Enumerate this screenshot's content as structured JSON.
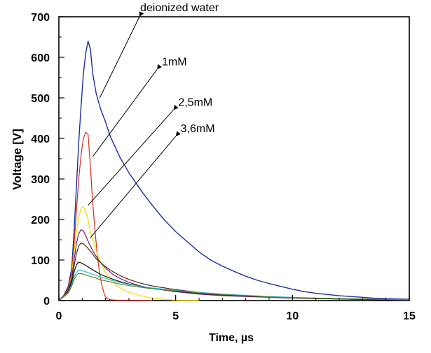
{
  "chart_data": {
    "type": "line",
    "xlabel": "Time, µs",
    "ylabel": "Voltage [V]",
    "xlim": [
      0,
      15
    ],
    "ylim": [
      0,
      700
    ],
    "x_ticks": [
      0,
      5,
      10,
      15
    ],
    "y_ticks": [
      0,
      100,
      200,
      300,
      400,
      500,
      600,
      700
    ],
    "grid": false,
    "legend": "annotations-with-arrows",
    "annotations": [
      {
        "text": "deionized water",
        "series": "deionized water",
        "arrow_from": [
          3.45,
          700
        ],
        "arrow_to": [
          1.75,
          500
        ]
      },
      {
        "text": "1mM",
        "series": "1mM",
        "arrow_from": [
          4.2,
          570
        ],
        "arrow_to": [
          1.45,
          355
        ]
      },
      {
        "text": "2,5mM",
        "series": "2,5mM",
        "arrow_from": [
          4.9,
          470
        ],
        "arrow_to": [
          1.25,
          235
        ]
      },
      {
        "text": "3,6mM",
        "series": "3,6mM",
        "arrow_from": [
          5.0,
          405
        ],
        "arrow_to": [
          1.35,
          155
        ]
      }
    ],
    "series": [
      {
        "name": "deionized water",
        "color": "#1f2ea0",
        "x": [
          0,
          0.2,
          0.4,
          0.55,
          0.65,
          0.75,
          0.85,
          0.95,
          1.05,
          1.15,
          1.25,
          1.35,
          1.45,
          1.6,
          1.8,
          2.0,
          2.2,
          2.4,
          2.6,
          2.8,
          3.0,
          3.3,
          3.6,
          4.0,
          4.5,
          5.0,
          5.5,
          6.0,
          6.5,
          7.0,
          7.5,
          8.0,
          8.5,
          9.0,
          9.5,
          10.0,
          10.5,
          11.0,
          11.5,
          12.0,
          12.5,
          13.0,
          13.5,
          14.0,
          14.5,
          15.0
        ],
        "y": [
          0,
          12,
          35,
          80,
          170,
          280,
          390,
          480,
          560,
          610,
          640,
          620,
          560,
          510,
          470,
          440,
          405,
          380,
          355,
          335,
          315,
          290,
          265,
          235,
          200,
          170,
          145,
          120,
          100,
          85,
          72,
          60,
          50,
          42,
          35,
          28,
          22,
          18,
          15,
          12,
          10,
          8,
          6,
          5,
          4,
          3
        ]
      },
      {
        "name": "1mM",
        "color": "#d22b1f",
        "x": [
          0,
          0.2,
          0.4,
          0.55,
          0.65,
          0.75,
          0.85,
          0.95,
          1.05,
          1.15,
          1.25,
          1.35,
          1.45,
          1.55,
          1.65,
          1.75,
          1.85,
          1.95,
          2.05,
          2.2,
          2.5,
          3.0,
          4.0
        ],
        "y": [
          0,
          12,
          30,
          70,
          140,
          220,
          300,
          360,
          400,
          415,
          410,
          330,
          240,
          170,
          110,
          65,
          35,
          15,
          5,
          2,
          1,
          1,
          0
        ]
      },
      {
        "name": "2,5mM",
        "color": "#f0e000",
        "x": [
          0,
          0.2,
          0.4,
          0.55,
          0.65,
          0.75,
          0.85,
          0.95,
          1.05,
          1.15,
          1.25,
          1.35,
          1.5,
          1.7,
          1.9,
          2.1,
          2.3,
          2.6,
          3.0,
          3.5,
          4.0,
          4.5,
          5.0,
          6.0
        ],
        "y": [
          0,
          10,
          25,
          60,
          120,
          170,
          205,
          228,
          232,
          220,
          200,
          170,
          140,
          105,
          80,
          60,
          45,
          32,
          20,
          12,
          6,
          3,
          1,
          0
        ]
      },
      {
        "name": "3,6mM",
        "color": "#7a1f6a",
        "x": [
          0,
          0.2,
          0.4,
          0.55,
          0.65,
          0.75,
          0.85,
          0.95,
          1.05,
          1.15,
          1.3,
          1.5,
          1.7,
          2.0,
          2.3,
          2.6,
          3.0,
          3.5,
          4.0,
          5.0,
          6.0,
          7.0,
          8.0,
          9.0,
          10.0,
          11.0,
          12.0,
          13.0,
          14.0,
          15.0
        ],
        "y": [
          0,
          10,
          25,
          55,
          100,
          140,
          165,
          175,
          172,
          160,
          140,
          118,
          100,
          80,
          65,
          55,
          45,
          36,
          30,
          22,
          16,
          12,
          10,
          8,
          6,
          5,
          4,
          3,
          2,
          1
        ]
      },
      {
        "name": "",
        "color": "#4a2a1a",
        "x": [
          0,
          0.2,
          0.4,
          0.55,
          0.65,
          0.75,
          0.85,
          0.95,
          1.05,
          1.2,
          1.4,
          1.6,
          1.9,
          2.2,
          2.6,
          3.0,
          3.5,
          4.0,
          5.0,
          6.0,
          7.0,
          8.0,
          9.0,
          10.0,
          11.0,
          12.0,
          13.0,
          14.0,
          15.0
        ],
        "y": [
          0,
          10,
          25,
          50,
          85,
          115,
          135,
          142,
          140,
          132,
          118,
          103,
          88,
          75,
          62,
          52,
          43,
          36,
          27,
          20,
          15,
          12,
          9,
          7,
          5,
          4,
          3,
          2,
          1
        ]
      },
      {
        "name": "",
        "color": "#111111",
        "x": [
          0,
          0.2,
          0.4,
          0.55,
          0.65,
          0.75,
          0.85,
          1.0,
          1.2,
          1.5,
          1.8,
          2.2,
          2.6,
          3.0,
          3.5,
          4.0,
          5.0,
          6.0,
          7.0,
          8.0,
          9.0,
          10.0,
          11.0,
          12.0,
          13.0,
          14.0,
          15.0
        ],
        "y": [
          0,
          10,
          22,
          45,
          70,
          88,
          95,
          92,
          85,
          74,
          64,
          55,
          47,
          41,
          35,
          30,
          23,
          18,
          14,
          11,
          9,
          7,
          5,
          4,
          3,
          2,
          1
        ]
      },
      {
        "name": "",
        "color": "#23c2c8",
        "x": [
          0,
          0.2,
          0.4,
          0.55,
          0.65,
          0.75,
          0.85,
          1.0,
          1.2,
          1.5,
          1.8,
          2.2,
          2.6,
          3.0,
          3.5,
          4.0,
          5.0,
          6.0,
          7.0,
          8.0,
          9.0,
          10.0,
          11.0,
          12.0,
          13.0,
          14.0,
          15.0
        ],
        "y": [
          0,
          10,
          20,
          40,
          58,
          70,
          75,
          74,
          70,
          64,
          58,
          51,
          45,
          40,
          35,
          31,
          25,
          20,
          16,
          13,
          10,
          8,
          6,
          5,
          4,
          3,
          2
        ]
      },
      {
        "name": "",
        "color": "#5b7f33",
        "x": [
          0,
          0.2,
          0.4,
          0.55,
          0.65,
          0.75,
          0.85,
          1.0,
          1.2,
          1.5,
          1.8,
          2.2,
          2.6,
          3.0,
          3.5,
          4.0,
          5.0,
          6.0,
          7.0,
          8.0,
          9.0,
          10.0,
          11.0,
          12.0,
          13.0,
          14.0,
          15.0
        ],
        "y": [
          0,
          9,
          18,
          36,
          52,
          62,
          67,
          66,
          62,
          57,
          51,
          46,
          41,
          37,
          33,
          29,
          24,
          19,
          15,
          12,
          9,
          7,
          6,
          5,
          4,
          3,
          2
        ]
      }
    ]
  }
}
